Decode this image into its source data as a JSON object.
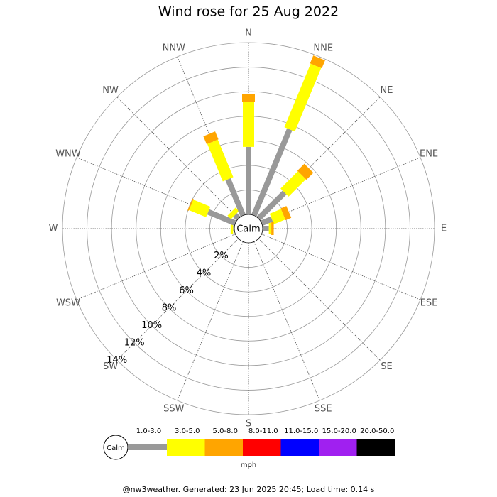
{
  "chart_data": {
    "type": "windrose",
    "title": "Wind rose for 25 Aug 2022",
    "directions": [
      "N",
      "NNE",
      "NE",
      "ENE",
      "E",
      "ESE",
      "SE",
      "SSE",
      "S",
      "SSW",
      "SW",
      "WSW",
      "W",
      "WNW",
      "NW",
      "NNW"
    ],
    "series": [
      {
        "name": "1.0-3.0",
        "color": "#999999",
        "values": [
          5.5,
          7.6,
          3.0,
          0.9,
          0.5,
          0,
          0,
          0,
          0,
          0,
          0,
          0,
          0.1,
          2.4,
          0.4,
          3.2
        ]
      },
      {
        "name": "3.0-5.0",
        "color": "#ffff00",
        "values": [
          3.7,
          5.6,
          2.0,
          1.0,
          0.2,
          0,
          0,
          0,
          0,
          0,
          0,
          0,
          0.2,
          1.5,
          0.4,
          3.3
        ]
      },
      {
        "name": "5.0-8.0",
        "color": "#ffa500",
        "values": [
          0.6,
          0.7,
          0.8,
          0.5,
          0.2,
          0,
          0,
          0,
          0,
          0,
          0,
          0,
          0,
          0.1,
          0,
          0.7
        ]
      },
      {
        "name": "8.0-11.0",
        "color": "#ff0000",
        "values": [
          0,
          0,
          0,
          0,
          0,
          0,
          0,
          0,
          0,
          0,
          0,
          0,
          0,
          0,
          0,
          0
        ]
      },
      {
        "name": "11.0-15.0",
        "color": "#0000ff",
        "values": [
          0,
          0,
          0,
          0,
          0,
          0,
          0,
          0,
          0,
          0,
          0,
          0,
          0,
          0,
          0,
          0
        ]
      },
      {
        "name": "15.0-20.0",
        "color": "#a020f0",
        "values": [
          0,
          0,
          0,
          0,
          0,
          0,
          0,
          0,
          0,
          0,
          0,
          0,
          0,
          0,
          0,
          0
        ]
      },
      {
        "name": "20.0-50.0",
        "color": "#000000",
        "values": [
          0,
          0,
          0,
          0,
          0,
          0,
          0,
          0,
          0,
          0,
          0,
          0,
          0,
          0,
          0,
          0
        ]
      }
    ],
    "rlim": [
      0,
      14
    ],
    "rticks": [
      {
        "value": 2,
        "label": "2%"
      },
      {
        "value": 4,
        "label": "4%"
      },
      {
        "value": 6,
        "label": "6%"
      },
      {
        "value": 8,
        "label": "8%"
      },
      {
        "value": 10,
        "label": "10%"
      },
      {
        "value": 12,
        "label": "12%"
      },
      {
        "value": 14,
        "label": "14%"
      }
    ],
    "center_label": "Calm",
    "legend_unit": "mph"
  },
  "footer": "@nw3weather. Generated: 23 Jun 2025 20:45; Load time: 0.14 s"
}
